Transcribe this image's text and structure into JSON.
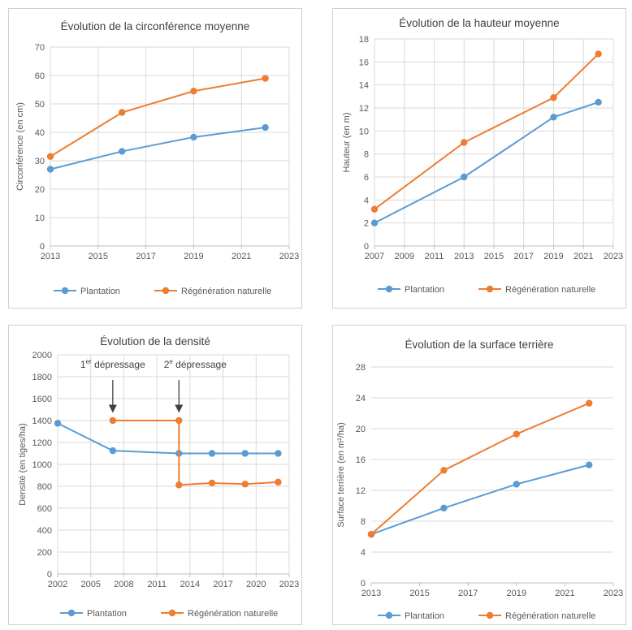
{
  "colors": {
    "plantation": "#5B9BD5",
    "regeneration": "#ED7D31",
    "grid": "#d9d9d9",
    "frame": "#d0d0d0",
    "text": "#595959",
    "title": "#404040",
    "arrow": "#404040"
  },
  "chart_data": [
    {
      "type": "line",
      "title": "Évolution de la circonférence moyenne",
      "xlabel": "",
      "ylabel": "Circonférence (en cm)",
      "xlim": [
        2013,
        2023
      ],
      "ylim": [
        0,
        70
      ],
      "xticks": [
        "2013",
        "2015",
        "2017",
        "2019",
        "2021",
        "2023"
      ],
      "yticks": [
        "0",
        "10",
        "20",
        "30",
        "40",
        "50",
        "60",
        "70"
      ],
      "grid": "vertical-and-horizontal",
      "legend": "bottom",
      "series": [
        {
          "name": "Plantation",
          "color": "#5B9BD5",
          "x": [
            2013,
            2016,
            2019,
            2022
          ],
          "y": [
            27,
            33.3,
            38.3,
            41.7
          ]
        },
        {
          "name": "Régénération naturelle",
          "color": "#ED7D31",
          "x": [
            2013,
            2016,
            2019,
            2022
          ],
          "y": [
            31.5,
            47,
            54.5,
            59
          ]
        }
      ]
    },
    {
      "type": "line",
      "title": "Évolution de la hauteur moyenne",
      "xlabel": "",
      "ylabel": "Hauteur (en m)",
      "xlim": [
        2007,
        2023
      ],
      "ylim": [
        0,
        18
      ],
      "xticks": [
        "2007",
        "2009",
        "2011",
        "2013",
        "2015",
        "2017",
        "2019",
        "2021",
        "2023"
      ],
      "yticks": [
        "0",
        "2",
        "4",
        "6",
        "8",
        "10",
        "12",
        "14",
        "16",
        "18"
      ],
      "grid": "vertical-and-horizontal",
      "legend": "bottom",
      "series": [
        {
          "name": "Plantation",
          "color": "#5B9BD5",
          "x": [
            2007,
            2013,
            2019,
            2022
          ],
          "y": [
            2,
            6,
            11.2,
            12.5
          ]
        },
        {
          "name": "Régénération naturelle",
          "color": "#ED7D31",
          "x": [
            2007,
            2013,
            2019,
            2022
          ],
          "y": [
            3.2,
            9,
            12.9,
            16.7
          ]
        }
      ]
    },
    {
      "type": "line",
      "title": "Évolution de la densité",
      "xlabel": "",
      "ylabel": "Densité (en tiges/ha)",
      "xlim": [
        2002,
        2023
      ],
      "ylim": [
        0,
        2000
      ],
      "xticks": [
        "2002",
        "2005",
        "2008",
        "2011",
        "2014",
        "2017",
        "2020",
        "2023"
      ],
      "yticks": [
        "0",
        "200",
        "400",
        "600",
        "800",
        "1000",
        "1200",
        "1400",
        "1600",
        "1800",
        "2000"
      ],
      "grid": "vertical-and-horizontal",
      "legend": "bottom",
      "series": [
        {
          "name": "Plantation",
          "color": "#5B9BD5",
          "x": [
            2002,
            2007,
            2013,
            2016,
            2019,
            2022
          ],
          "y": [
            1375,
            1125,
            1100,
            1100,
            1100,
            1100
          ]
        },
        {
          "name": "Régénération naturelle",
          "color": "#ED7D31",
          "x": [
            2007,
            2013,
            2013,
            2016,
            2019,
            2022
          ],
          "y": [
            1400,
            1400,
            812,
            830,
            820,
            838
          ],
          "markers": [
            0,
            1,
            2,
            3,
            4,
            5
          ]
        }
      ],
      "annotations": [
        {
          "text": "1",
          "sup": "er",
          "rest": " dépressage",
          "x": 2007,
          "y_text": 1880,
          "y_arrow_start": 1770,
          "y_arrow_end": 1470
        },
        {
          "text": "2",
          "sup": "e",
          "rest": " dépressage",
          "x": 2013,
          "y_text": 1880,
          "y_arrow_start": 1770,
          "y_arrow_end": 1470
        }
      ]
    },
    {
      "type": "line",
      "title": "Évolution de la surface terrière",
      "xlabel": "",
      "ylabel": "Surface terrière (en m²/ha)",
      "xlim": [
        2013,
        2023
      ],
      "ylim": [
        0,
        28
      ],
      "xticks": [
        "2013",
        "2015",
        "2017",
        "2019",
        "2021",
        "2023"
      ],
      "yticks": [
        "0",
        "4",
        "8",
        "12",
        "16",
        "20",
        "24",
        "28"
      ],
      "grid": "horizontal",
      "legend": "bottom",
      "series": [
        {
          "name": "Plantation",
          "color": "#5B9BD5",
          "x": [
            2013,
            2016,
            2019,
            2022
          ],
          "y": [
            6.3,
            9.7,
            12.8,
            15.3
          ]
        },
        {
          "name": "Régénération naturelle",
          "color": "#ED7D31",
          "x": [
            2013,
            2016,
            2019,
            2022
          ],
          "y": [
            6.3,
            14.6,
            19.3,
            23.3
          ]
        }
      ]
    }
  ]
}
